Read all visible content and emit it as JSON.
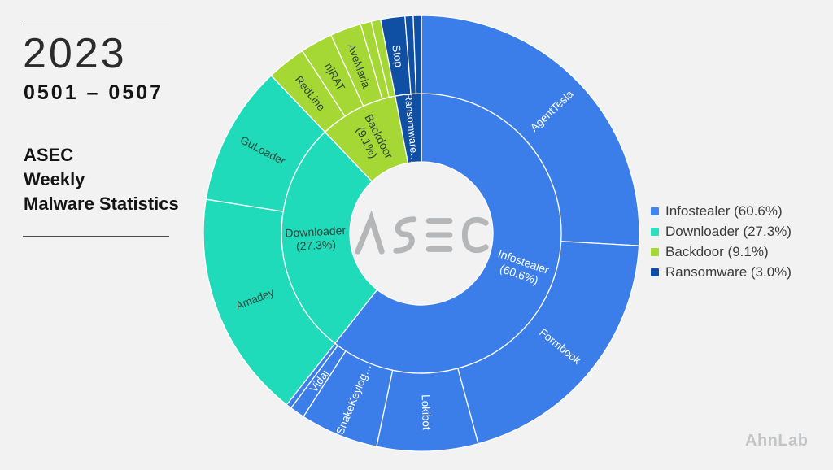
{
  "header": {
    "year": "2023",
    "range": "0501 – 0507",
    "title": [
      "ASEC",
      "Weekly",
      "Malware Statistics"
    ]
  },
  "watermark": "AhnLab",
  "center_logo": "ASEC",
  "colors": {
    "background": "#f2f2f2",
    "infostealer": "#3c7ee9",
    "downloader": "#1fdbb9",
    "backdoor": "#a5d834",
    "ransomware": "#0f4fa4",
    "divider": "#ffffff",
    "light_text": "#ffffff",
    "dark_text": "#2e463e",
    "logo_gray": "#b5b6b8"
  },
  "legend": {
    "items": [
      {
        "label": "Infostealer (60.6%)",
        "color": "#3f86f2"
      },
      {
        "label": "Downloader (27.3%)",
        "color": "#2be0bf"
      },
      {
        "label": "Backdoor (9.1%)",
        "color": "#a4d92f"
      },
      {
        "label": "Ransomware (3.0%)",
        "color": "#0d4da6"
      }
    ]
  },
  "chart_data": {
    "type": "sunburst",
    "rings": [
      "category",
      "family"
    ],
    "start_angle_deg": 0,
    "direction": "clockwise",
    "categories": [
      {
        "name": "Infostealer",
        "pct": 60.6,
        "color_key": "infostealer",
        "label_lines": [
          "Infostealer",
          "(60.6%)"
        ],
        "text": "light",
        "children": [
          {
            "name": "AgentTesla",
            "pct": 25.9,
            "label": "AgentTesla"
          },
          {
            "name": "Formbook",
            "pct": 19.9,
            "label": "Formbook"
          },
          {
            "name": "Lokibot",
            "pct": 7.5,
            "label": "Lokibot"
          },
          {
            "name": "SnakeKeylogger",
            "pct": 5.8,
            "label": "SnakeKeylog…"
          },
          {
            "name": "Vidar",
            "pct": 1.1,
            "label": "Vidar"
          },
          {
            "name": "other-1",
            "pct": 0.4,
            "label": null
          }
        ]
      },
      {
        "name": "Downloader",
        "pct": 27.3,
        "color_key": "downloader",
        "label_lines": [
          "Downloader",
          "(27.3%)"
        ],
        "text": "dark",
        "children": [
          {
            "name": "Amadey",
            "pct": 16.9,
            "label": "Amadey"
          },
          {
            "name": "GuLoader",
            "pct": 10.4,
            "label": "GuLoader"
          }
        ]
      },
      {
        "name": "Backdoor",
        "pct": 9.1,
        "color_key": "backdoor",
        "label_lines": [
          "Backdoor",
          "(9.1%)"
        ],
        "text": "dark",
        "children": [
          {
            "name": "RedLine",
            "pct": 2.9,
            "label": "RedLine"
          },
          {
            "name": "njRAT",
            "pct": 2.4,
            "label": "njRAT"
          },
          {
            "name": "AveMaria",
            "pct": 2.3,
            "label": "AveMaria"
          },
          {
            "name": "other-1",
            "pct": 0.8,
            "label": null
          },
          {
            "name": "other-2",
            "pct": 0.7,
            "label": null
          }
        ]
      },
      {
        "name": "Ransomware",
        "pct": 3.0,
        "color_key": "ransomware",
        "label_lines": [
          "Ransomware…"
        ],
        "label_size": 12.5,
        "text": "light",
        "children": [
          {
            "name": "Stop",
            "pct": 1.8,
            "label": "Stop"
          },
          {
            "name": "other-1",
            "pct": 0.6,
            "label": null
          },
          {
            "name": "other-2",
            "pct": 0.6,
            "label": null
          }
        ]
      }
    ]
  }
}
